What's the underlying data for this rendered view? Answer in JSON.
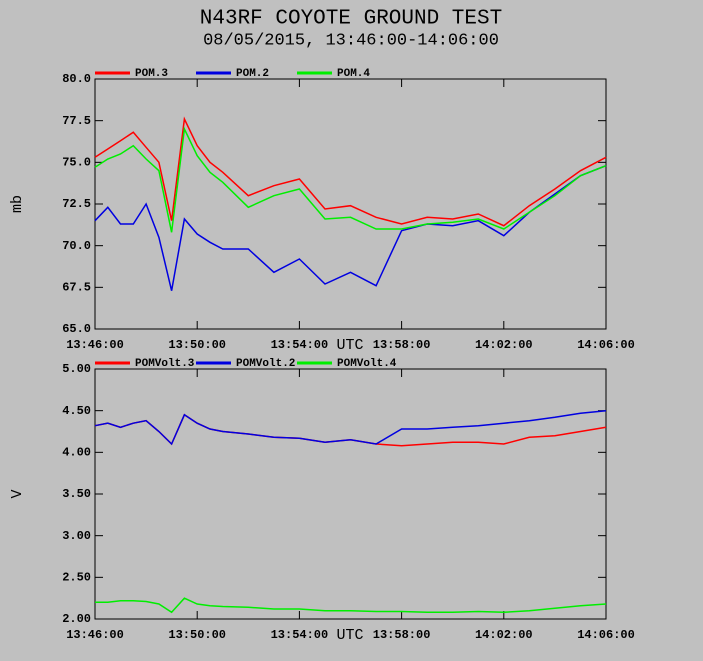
{
  "chart_data": [
    {
      "type": "line",
      "title": "N43RF COYOTE GROUND TEST",
      "subtitle": "08/05/2015, 13:46:00-14:06:00",
      "xlabel": "UTC",
      "ylabel": "mb",
      "x": [
        "13:46:00",
        "13:46:30",
        "13:47:00",
        "13:47:30",
        "13:48:00",
        "13:48:30",
        "13:49:00",
        "13:49:30",
        "13:50:00",
        "13:50:30",
        "13:51:00",
        "13:52:00",
        "13:53:00",
        "13:54:00",
        "13:55:00",
        "13:56:00",
        "13:57:00",
        "13:58:00",
        "13:59:00",
        "14:00:00",
        "14:01:00",
        "14:02:00",
        "14:03:00",
        "14:04:00",
        "14:05:00",
        "14:06:00"
      ],
      "xlim": [
        "13:46:00",
        "14:06:00"
      ],
      "xticks": [
        "13:46:00",
        "13:50:00",
        "13:54:00",
        "13:58:00",
        "14:02:00",
        "14:06:00"
      ],
      "ylim": [
        65,
        80
      ],
      "yticks": [
        {
          "value": 65,
          "label": "65.0"
        },
        67.5,
        {
          "value": 70,
          "label": "70.0"
        },
        72.5,
        {
          "value": 75,
          "label": "75.0"
        },
        77.5,
        {
          "value": 80,
          "label": "80.0"
        }
      ],
      "series": [
        {
          "name": "POM.3",
          "color": "#ff0000",
          "values": [
            75.3,
            75.8,
            76.3,
            76.8,
            75.9,
            75.0,
            71.5,
            77.6,
            76.0,
            75.0,
            74.4,
            73.0,
            73.6,
            74.0,
            72.2,
            72.4,
            71.7,
            71.3,
            71.7,
            71.6,
            71.9,
            71.2,
            72.4,
            73.4,
            74.5,
            75.3
          ]
        },
        {
          "name": "POM.2",
          "color": "#0000e0",
          "values": [
            71.5,
            72.3,
            71.3,
            71.3,
            72.5,
            70.5,
            67.3,
            71.6,
            70.7,
            70.2,
            69.8,
            69.8,
            68.4,
            69.2,
            67.7,
            68.4,
            67.6,
            70.9,
            71.3,
            71.2,
            71.5,
            70.6,
            72.0,
            73.1,
            74.2,
            74.8
          ]
        },
        {
          "name": "POM.4",
          "color": "#00ee00",
          "values": [
            74.7,
            75.2,
            75.5,
            76.0,
            75.2,
            74.5,
            70.8,
            77.0,
            75.4,
            74.4,
            73.8,
            72.3,
            73.0,
            73.4,
            71.6,
            71.7,
            71.0,
            71.0,
            71.3,
            71.4,
            71.6,
            71.0,
            72.0,
            73.0,
            74.2,
            74.8
          ]
        }
      ]
    },
    {
      "type": "line",
      "xlabel": "UTC",
      "ylabel": "V",
      "x": [
        "13:46:00",
        "13:46:30",
        "13:47:00",
        "13:47:30",
        "13:48:00",
        "13:48:30",
        "13:49:00",
        "13:49:30",
        "13:50:00",
        "13:50:30",
        "13:51:00",
        "13:52:00",
        "13:53:00",
        "13:54:00",
        "13:55:00",
        "13:56:00",
        "13:57:00",
        "13:58:00",
        "13:59:00",
        "14:00:00",
        "14:01:00",
        "14:02:00",
        "14:03:00",
        "14:04:00",
        "14:05:00",
        "14:06:00"
      ],
      "xlim": [
        "13:46:00",
        "14:06:00"
      ],
      "xticks": [
        "13:46:00",
        "13:50:00",
        "13:54:00",
        "13:58:00",
        "14:02:00",
        "14:06:00"
      ],
      "ylim": [
        2,
        5
      ],
      "yticks": [
        {
          "value": 2,
          "label": "2.00"
        },
        {
          "value": 2.5,
          "label": "2.50"
        },
        {
          "value": 3,
          "label": "3.00"
        },
        {
          "value": 3.5,
          "label": "3.50"
        },
        {
          "value": 4,
          "label": "4.00"
        },
        {
          "value": 4.5,
          "label": "4.50"
        },
        {
          "value": 5,
          "label": "5.00"
        }
      ],
      "series": [
        {
          "name": "POMVolt.3",
          "color": "#ff0000",
          "values": [
            4.32,
            4.35,
            4.3,
            4.35,
            4.38,
            4.25,
            4.1,
            4.45,
            4.35,
            4.28,
            4.25,
            4.22,
            4.18,
            4.17,
            4.12,
            4.15,
            4.1,
            4.08,
            4.1,
            4.12,
            4.12,
            4.1,
            4.18,
            4.2,
            4.25,
            4.3
          ]
        },
        {
          "name": "POMVolt.2",
          "color": "#0000e0",
          "values": [
            4.32,
            4.35,
            4.3,
            4.35,
            4.38,
            4.25,
            4.1,
            4.45,
            4.35,
            4.28,
            4.25,
            4.22,
            4.18,
            4.17,
            4.12,
            4.15,
            4.1,
            4.28,
            4.28,
            4.3,
            4.32,
            4.35,
            4.38,
            4.42,
            4.47,
            4.5
          ]
        },
        {
          "name": "POMVolt.4",
          "color": "#00ee00",
          "values": [
            2.2,
            2.2,
            2.22,
            2.22,
            2.21,
            2.18,
            2.08,
            2.25,
            2.18,
            2.16,
            2.15,
            2.14,
            2.12,
            2.12,
            2.1,
            2.1,
            2.09,
            2.09,
            2.08,
            2.08,
            2.09,
            2.08,
            2.1,
            2.13,
            2.16,
            2.18
          ]
        }
      ]
    }
  ]
}
